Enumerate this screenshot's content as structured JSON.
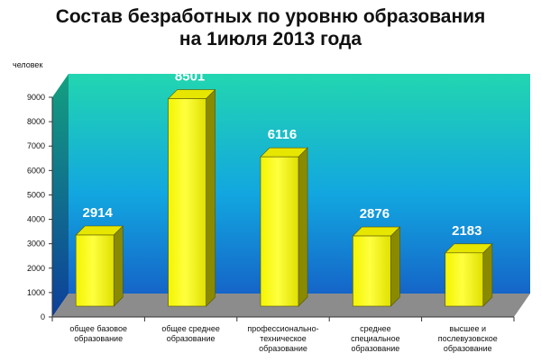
{
  "chart_data": {
    "type": "bar",
    "title_lines": [
      "Состав безработных по уровню образования",
      "на 1июля 2013 года"
    ],
    "ylabel": "человек",
    "ylim": [
      0,
      9000
    ],
    "yticks": [
      0,
      1000,
      2000,
      3000,
      4000,
      5000,
      6000,
      7000,
      8000,
      9000
    ],
    "categories": [
      [
        "общее базовое",
        "образование"
      ],
      [
        "общее среднее",
        "образование"
      ],
      [
        "профессионально-",
        "техническое",
        "образование"
      ],
      [
        "среднее",
        "специальное",
        "образование"
      ],
      [
        "высшее и",
        "послевузовское",
        "образование"
      ]
    ],
    "values": [
      2914,
      8501,
      6116,
      2876,
      2183
    ],
    "colors": {
      "bar_front": "#ffff00",
      "bar_side": "#8a8a00",
      "bar_top": "#e6e600",
      "wall_top": "#22d6b0",
      "wall_bottom": "#1565c8",
      "floor": "#8c8c8c"
    }
  }
}
